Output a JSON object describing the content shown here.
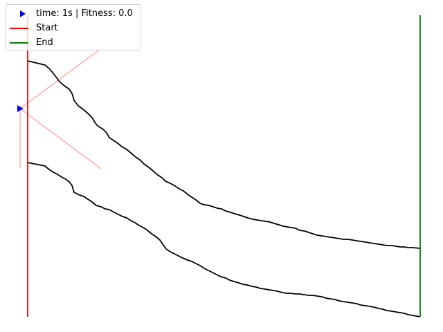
{
  "legend": {
    "agent_label": "time: 1s | Fitness: 0.0",
    "start_label": "Start",
    "end_label": "End"
  },
  "colors": {
    "agent": "#0000ff",
    "start": "#ff0000",
    "end": "#008000",
    "track": "#000000",
    "sensor": "#ffb0b0"
  }
}
